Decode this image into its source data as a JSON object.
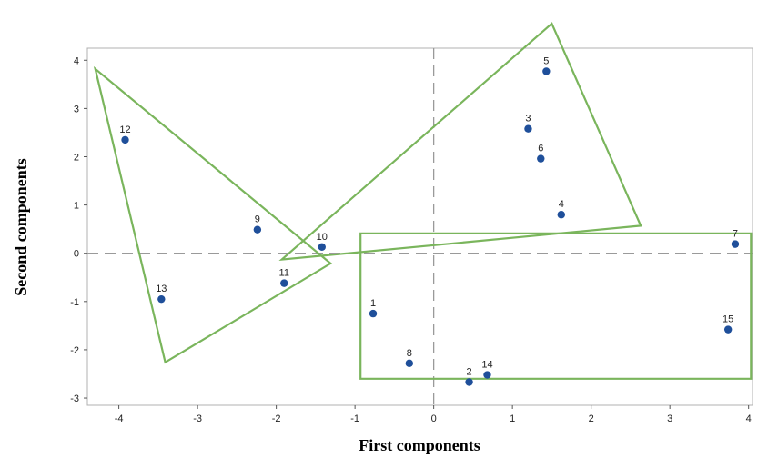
{
  "chart_data": {
    "type": "scatter",
    "xlabel": "First components",
    "ylabel": "Second components",
    "xlim": [
      -4.4,
      4.05
    ],
    "ylim": [
      -3.15,
      4.25
    ],
    "x_ticks": [
      -4,
      -3,
      -2,
      -1,
      0,
      1,
      2,
      3,
      4
    ],
    "y_ticks": [
      4,
      3,
      2,
      1,
      0,
      -1,
      -2,
      -3
    ],
    "reference_lines": {
      "x": 0,
      "y": 0,
      "style": "dashed"
    },
    "points": [
      {
        "label": "1",
        "x": -0.77,
        "y": -1.25
      },
      {
        "label": "2",
        "x": 0.45,
        "y": -2.67
      },
      {
        "label": "3",
        "x": 1.2,
        "y": 2.58
      },
      {
        "label": "4",
        "x": 1.62,
        "y": 0.8
      },
      {
        "label": "5",
        "x": 1.43,
        "y": 3.77
      },
      {
        "label": "6",
        "x": 1.36,
        "y": 1.96
      },
      {
        "label": "7",
        "x": 3.83,
        "y": 0.19
      },
      {
        "label": "8",
        "x": -0.31,
        "y": -2.28
      },
      {
        "label": "9",
        "x": -2.24,
        "y": 0.49
      },
      {
        "label": "10",
        "x": -1.42,
        "y": 0.13
      },
      {
        "label": "11",
        "x": -1.9,
        "y": -0.62
      },
      {
        "label": "12",
        "x": -3.92,
        "y": 2.35
      },
      {
        "label": "13",
        "x": -3.46,
        "y": -0.95
      },
      {
        "label": "14",
        "x": 0.68,
        "y": -2.52
      },
      {
        "label": "15",
        "x": 3.74,
        "y": -1.58
      }
    ],
    "groups": [
      {
        "shape": "triangle",
        "vertices": [
          [
            -4.3,
            3.82
          ],
          [
            -1.31,
            -0.21
          ],
          [
            -3.41,
            -2.26
          ]
        ]
      },
      {
        "shape": "quadrilateral",
        "vertices": [
          [
            -1.93,
            -0.13
          ],
          [
            1.5,
            4.76
          ],
          [
            2.63,
            0.57
          ],
          [
            -1.93,
            -0.13
          ]
        ]
      },
      {
        "shape": "rectangle",
        "vertices": [
          [
            -0.93,
            0.41
          ],
          [
            4.03,
            0.41
          ],
          [
            4.03,
            -2.6
          ],
          [
            -0.93,
            -2.6
          ]
        ]
      }
    ],
    "colors": {
      "points": "#1f4f9a",
      "groups": "#7ab55c",
      "frame": "#b0b0b0",
      "reference": "#9a9a9a"
    }
  }
}
